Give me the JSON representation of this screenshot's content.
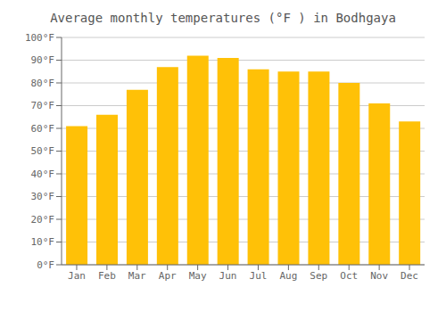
{
  "chart_data": {
    "type": "bar",
    "title": "Average monthly temperatures (°F ) in Bodhgaya",
    "categories": [
      "Jan",
      "Feb",
      "Mar",
      "Apr",
      "May",
      "Jun",
      "Jul",
      "Aug",
      "Sep",
      "Oct",
      "Nov",
      "Dec"
    ],
    "values": [
      61,
      66,
      77,
      87,
      92,
      91,
      86,
      85,
      85,
      80,
      71,
      63
    ],
    "color": "#FFC107",
    "ylim": [
      0,
      100
    ],
    "yticks": [
      {
        "value": 0,
        "label": "0°F"
      },
      {
        "value": 10,
        "label": "10°F"
      },
      {
        "value": 20,
        "label": "20°F"
      },
      {
        "value": 30,
        "label": "30°F"
      },
      {
        "value": 40,
        "label": "40°F"
      },
      {
        "value": 50,
        "label": "50°F"
      },
      {
        "value": 60,
        "label": "60°F"
      },
      {
        "value": 70,
        "label": "70°F"
      },
      {
        "value": 80,
        "label": "80°F"
      },
      {
        "value": 90,
        "label": "90°F"
      },
      {
        "value": 100,
        "label": "100°F"
      }
    ],
    "grid": true
  }
}
